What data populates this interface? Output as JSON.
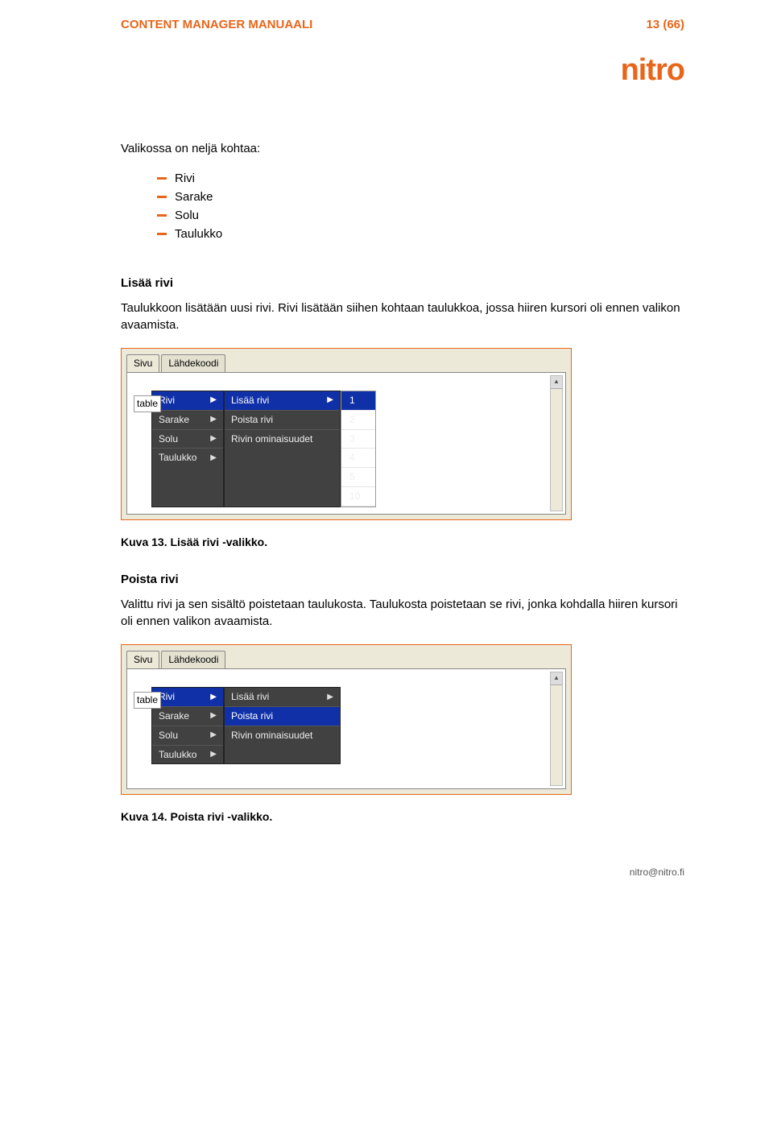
{
  "colors": {
    "accent": "#e8651a",
    "menu_bg": "#424142",
    "menu_hl": "#1030a8",
    "panel_bg": "#ece9d8"
  },
  "header": {
    "title": "CONTENT MANAGER MANUAALI",
    "page": "13 (66)"
  },
  "logo_text": "nitro",
  "intro": "Valikossa on neljä kohtaa:",
  "bullet_items": [
    "Rivi",
    "Sarake",
    "Solu",
    "Taulukko"
  ],
  "section1": {
    "heading": "Lisää rivi",
    "body": "Taulukkoon lisätään uusi rivi. Rivi lisätään siihen kohtaan taulukkoa, jossa hiiren kursori oli ennen valikon avaamista.",
    "caption": "Kuva 13. Lisää rivi -valikko."
  },
  "section2": {
    "heading": "Poista rivi",
    "body": "Valittu rivi ja sen sisältö poistetaan taulukosta. Taulukosta poistetaan se rivi, jonka kohdalla hiiren kursori oli ennen valikon avaamista.",
    "caption": "Kuva 14. Poista rivi -valikko."
  },
  "ui_shared": {
    "tabs": [
      "Sivu",
      "Lähdekoodi"
    ],
    "table_label": "table",
    "main_menu": [
      "Rivi",
      "Sarake",
      "Solu",
      "Taulukko"
    ],
    "sub_menu": [
      "Lisää rivi",
      "Poista rivi",
      "Rivin ominaisuudet"
    ],
    "numbers": [
      "1",
      "2",
      "3",
      "4",
      "5",
      "10"
    ],
    "scroll_up_glyph": "▲"
  },
  "screenshot1": {
    "main_hl_index": 0,
    "sub_hl_index": 0,
    "show_numbers": true
  },
  "screenshot2": {
    "main_hl_index": 0,
    "sub_hl_index": 1,
    "show_numbers": false
  },
  "footer": {
    "left": "",
    "right": "nitro@nitro.fi"
  }
}
